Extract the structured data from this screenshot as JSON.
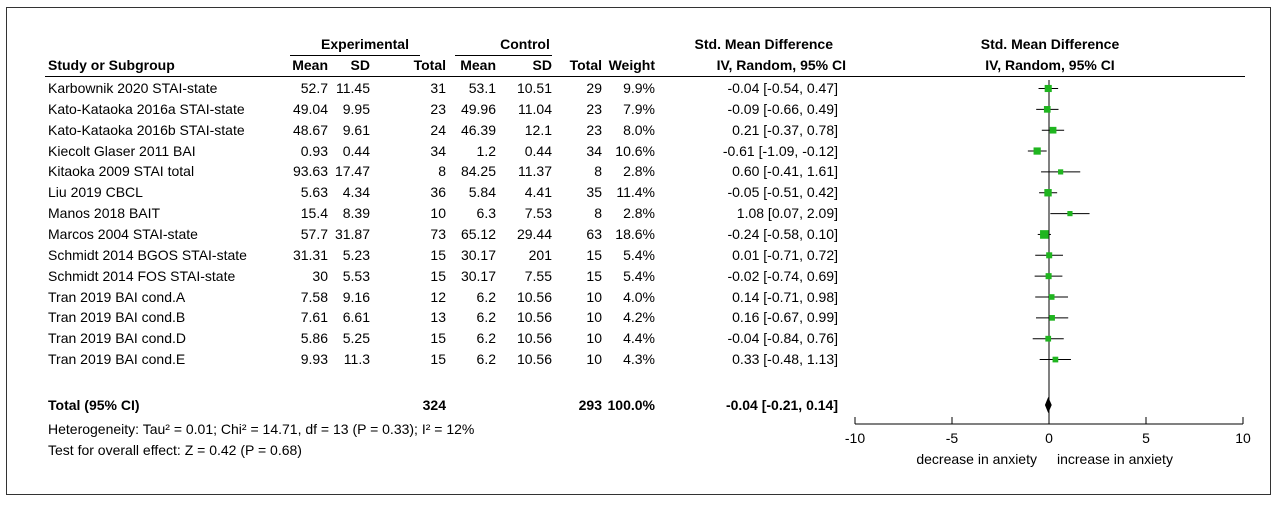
{
  "header": {
    "group_experimental": "Experimental",
    "group_control": "Control",
    "group_smd": "Std. Mean Difference",
    "group_smd_plot": "Std. Mean Difference",
    "col_study": "Study or Subgroup",
    "col_mean_e": "Mean",
    "col_sd_e": "SD",
    "col_total_e": "Total",
    "col_mean_c": "Mean",
    "col_sd_c": "SD",
    "col_total_c": "Total",
    "col_weight": "Weight",
    "col_ci": "IV, Random, 95% CI",
    "col_ci_plot": "IV, Random, 95% CI"
  },
  "studies": [
    {
      "name": "Karbownik 2020 STAI-state",
      "mean_e": "52.7",
      "sd_e": "11.45",
      "n_e": "31",
      "mean_c": "53.1",
      "sd_c": "10.51",
      "n_c": "29",
      "weight": "9.9%",
      "ci": "-0.04 [-0.54, 0.47]"
    },
    {
      "name": "Kato-Kataoka 2016a STAI-state",
      "mean_e": "49.04",
      "sd_e": "9.95",
      "n_e": "23",
      "mean_c": "49.96",
      "sd_c": "11.04",
      "n_c": "23",
      "weight": "7.9%",
      "ci": "-0.09 [-0.66, 0.49]"
    },
    {
      "name": "Kato-Kataoka 2016b STAI-state",
      "mean_e": "48.67",
      "sd_e": "9.61",
      "n_e": "24",
      "mean_c": "46.39",
      "sd_c": "12.1",
      "n_c": "23",
      "weight": "8.0%",
      "ci": "0.21 [-0.37, 0.78]"
    },
    {
      "name": "Kiecolt Glaser 2011 BAI",
      "mean_e": "0.93",
      "sd_e": "0.44",
      "n_e": "34",
      "mean_c": "1.2",
      "sd_c": "0.44",
      "n_c": "34",
      "weight": "10.6%",
      "ci": "-0.61 [-1.09, -0.12]"
    },
    {
      "name": "Kitaoka 2009 STAI total",
      "mean_e": "93.63",
      "sd_e": "17.47",
      "n_e": "8",
      "mean_c": "84.25",
      "sd_c": "11.37",
      "n_c": "8",
      "weight": "2.8%",
      "ci": "0.60 [-0.41, 1.61]"
    },
    {
      "name": "Liu 2019 CBCL",
      "mean_e": "5.63",
      "sd_e": "4.34",
      "n_e": "36",
      "mean_c": "5.84",
      "sd_c": "4.41",
      "n_c": "35",
      "weight": "11.4%",
      "ci": "-0.05 [-0.51, 0.42]"
    },
    {
      "name": "Manos 2018 BAIT",
      "mean_e": "15.4",
      "sd_e": "8.39",
      "n_e": "10",
      "mean_c": "6.3",
      "sd_c": "7.53",
      "n_c": "8",
      "weight": "2.8%",
      "ci": "1.08 [0.07, 2.09]"
    },
    {
      "name": "Marcos 2004 STAI-state",
      "mean_e": "57.7",
      "sd_e": "31.87",
      "n_e": "73",
      "mean_c": "65.12",
      "sd_c": "29.44",
      "n_c": "63",
      "weight": "18.6%",
      "ci": "-0.24 [-0.58, 0.10]"
    },
    {
      "name": "Schmidt 2014 BGOS STAI-state",
      "mean_e": "31.31",
      "sd_e": "5.23",
      "n_e": "15",
      "mean_c": "30.17",
      "sd_c": "201",
      "n_c": "15",
      "weight": "5.4%",
      "ci": "0.01 [-0.71, 0.72]"
    },
    {
      "name": "Schmidt 2014 FOS STAI-state",
      "mean_e": "30",
      "sd_e": "5.53",
      "n_e": "15",
      "mean_c": "30.17",
      "sd_c": "7.55",
      "n_c": "15",
      "weight": "5.4%",
      "ci": "-0.02 [-0.74, 0.69]"
    },
    {
      "name": "Tran 2019 BAI cond.A",
      "mean_e": "7.58",
      "sd_e": "9.16",
      "n_e": "12",
      "mean_c": "6.2",
      "sd_c": "10.56",
      "n_c": "10",
      "weight": "4.0%",
      "ci": "0.14 [-0.71, 0.98]"
    },
    {
      "name": "Tran 2019 BAI cond.B",
      "mean_e": "7.61",
      "sd_e": "6.61",
      "n_e": "13",
      "mean_c": "6.2",
      "sd_c": "10.56",
      "n_c": "10",
      "weight": "4.2%",
      "ci": "0.16 [-0.67, 0.99]"
    },
    {
      "name": "Tran 2019 BAI cond.D",
      "mean_e": "5.86",
      "sd_e": "5.25",
      "n_e": "15",
      "mean_c": "6.2",
      "sd_c": "10.56",
      "n_c": "10",
      "weight": "4.4%",
      "ci": "-0.04 [-0.84, 0.76]"
    },
    {
      "name": "Tran 2019 BAI cond.E",
      "mean_e": "9.93",
      "sd_e": "11.3",
      "n_e": "15",
      "mean_c": "6.2",
      "sd_c": "10.56",
      "n_c": "10",
      "weight": "4.3%",
      "ci": "0.33 [-0.48, 1.13]"
    }
  ],
  "total": {
    "label": "Total (95% CI)",
    "n_e": "324",
    "n_c": "293",
    "weight": "100.0%",
    "ci": "-0.04 [-0.21, 0.14]"
  },
  "footer": {
    "heterogeneity": "Heterogeneity: Tau² = 0.01; Chi² = 14.71, df = 13 (P = 0.33); I² = 12%",
    "overall": "Test for overall effect: Z = 0.42 (P = 0.68)"
  },
  "chart_data": {
    "type": "forest",
    "xlim": [
      -10,
      10
    ],
    "ticks": [
      -10,
      -5,
      0,
      5,
      10
    ],
    "tick_labels": [
      "-10",
      "-5",
      "0",
      "5",
      "10"
    ],
    "left_label": "decrease in anxiety",
    "right_label": "increase in anxiety",
    "marker_color": "#1fb51f",
    "points": [
      {
        "est": -0.04,
        "lo": -0.54,
        "hi": 0.47
      },
      {
        "est": -0.09,
        "lo": -0.66,
        "hi": 0.49
      },
      {
        "est": 0.21,
        "lo": -0.37,
        "hi": 0.78
      },
      {
        "est": -0.61,
        "lo": -1.09,
        "hi": -0.12
      },
      {
        "est": 0.6,
        "lo": -0.41,
        "hi": 1.61
      },
      {
        "est": -0.05,
        "lo": -0.51,
        "hi": 0.42
      },
      {
        "est": 1.08,
        "lo": 0.07,
        "hi": 2.09
      },
      {
        "est": -0.24,
        "lo": -0.58,
        "hi": 0.1
      },
      {
        "est": 0.01,
        "lo": -0.71,
        "hi": 0.72
      },
      {
        "est": -0.02,
        "lo": -0.74,
        "hi": 0.69
      },
      {
        "est": 0.14,
        "lo": -0.71,
        "hi": 0.98
      },
      {
        "est": 0.16,
        "lo": -0.67,
        "hi": 0.99
      },
      {
        "est": -0.04,
        "lo": -0.84,
        "hi": 0.76
      },
      {
        "est": 0.33,
        "lo": -0.48,
        "hi": 1.13
      }
    ],
    "pooled": {
      "est": -0.04,
      "lo": -0.21,
      "hi": 0.14
    }
  }
}
